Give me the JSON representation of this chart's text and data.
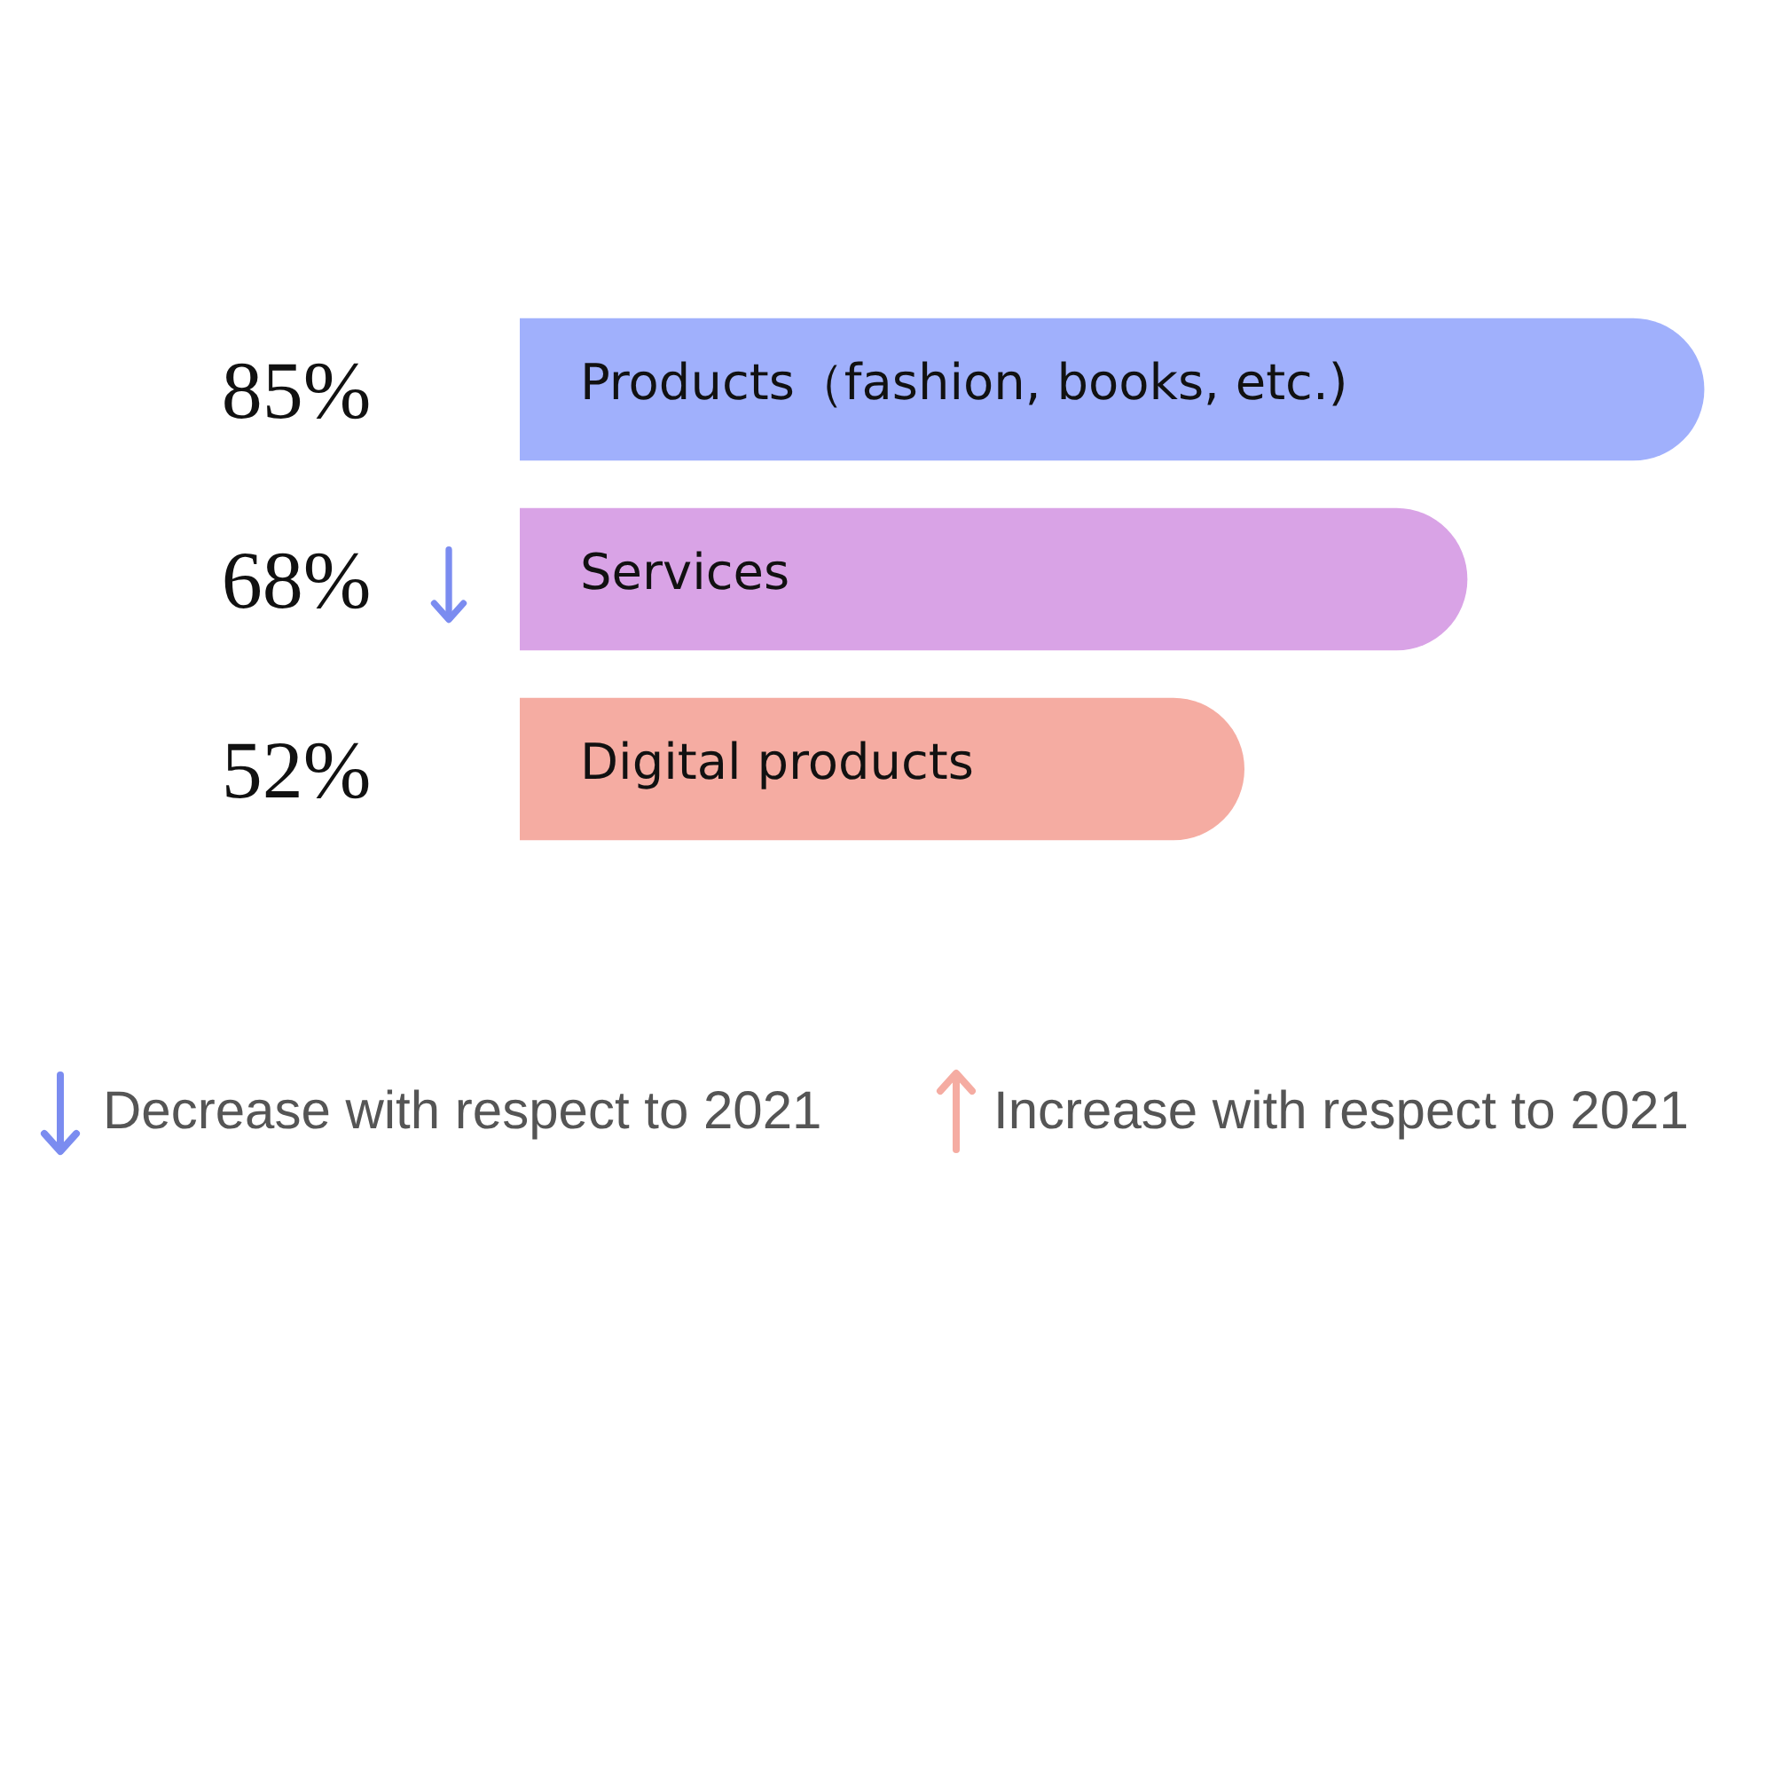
{
  "chart_data": {
    "type": "bar",
    "orientation": "horizontal",
    "categories": [
      "Products（fashion, books, etc.)",
      "Services",
      "Digital products"
    ],
    "values": [
      85,
      68,
      52
    ],
    "colors": [
      "#a0b0fc",
      "#d9a3e6",
      "#f5aca2"
    ],
    "value_labels": [
      "85%",
      "68%",
      "52%"
    ],
    "tick_labels": false,
    "annotations": [
      "Decrease with respect to 2021",
      "Increase with respect to 2021"
    ]
  }
}
